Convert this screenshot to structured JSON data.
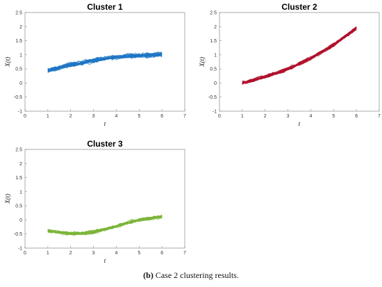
{
  "chart_data": [
    {
      "type": "line",
      "title": "Cluster 1",
      "xlabel": "t",
      "ylabel": "X(t)",
      "xlim": [
        0,
        7
      ],
      "ylim": [
        -1,
        2.5
      ],
      "xticks": [
        "0",
        "1",
        "2",
        "3",
        "4",
        "5",
        "6",
        "7"
      ],
      "yticks": [
        "-1",
        "-0.5",
        "0",
        "0.5",
        "1",
        "1.5",
        "2",
        "2.5"
      ],
      "color": "#1f77c4",
      "series_count": 30,
      "x": [
        1,
        1.5,
        2,
        2.5,
        3,
        3.5,
        4,
        4.5,
        5,
        5.5,
        6
      ],
      "mean": [
        0.45,
        0.55,
        0.65,
        0.72,
        0.8,
        0.87,
        0.92,
        0.95,
        0.98,
        1.0,
        1.02
      ],
      "spread": 0.13
    },
    {
      "type": "line",
      "title": "Cluster 2",
      "xlabel": "t",
      "ylabel": "X(t)",
      "xlim": [
        0,
        7
      ],
      "ylim": [
        -1,
        2.5
      ],
      "xticks": [
        "0",
        "1",
        "2",
        "3",
        "4",
        "5",
        "6",
        "7"
      ],
      "yticks": [
        "-1",
        "-0.5",
        "0",
        "0.5",
        "1",
        "1.5",
        "2",
        "2.5"
      ],
      "color": "#b0122d",
      "series_count": 30,
      "x": [
        1,
        1.5,
        2,
        2.5,
        3,
        3.5,
        4,
        4.5,
        5,
        5.5,
        6
      ],
      "mean": [
        0.0,
        0.1,
        0.22,
        0.35,
        0.5,
        0.68,
        0.88,
        1.1,
        1.35,
        1.65,
        1.95
      ],
      "spread": 0.1
    },
    {
      "type": "line",
      "title": "Cluster 3",
      "xlabel": "t",
      "ylabel": "X(t)",
      "xlim": [
        0,
        7
      ],
      "ylim": [
        -1,
        2.5
      ],
      "xticks": [
        "0",
        "1",
        "2",
        "3",
        "4",
        "5",
        "6",
        "7"
      ],
      "yticks": [
        "-1",
        "-0.5",
        "0",
        "0.5",
        "1",
        "1.5",
        "2",
        "2.5"
      ],
      "color": "#7db53a",
      "series_count": 30,
      "x": [
        1,
        1.5,
        2,
        2.5,
        3,
        3.5,
        4,
        4.5,
        5,
        5.5,
        6
      ],
      "mean": [
        -0.38,
        -0.44,
        -0.48,
        -0.47,
        -0.42,
        -0.33,
        -0.22,
        -0.1,
        0.0,
        0.07,
        0.12
      ],
      "spread": 0.1
    }
  ],
  "caption": {
    "label": "(b)",
    "text": "Case 2 clustering results."
  }
}
